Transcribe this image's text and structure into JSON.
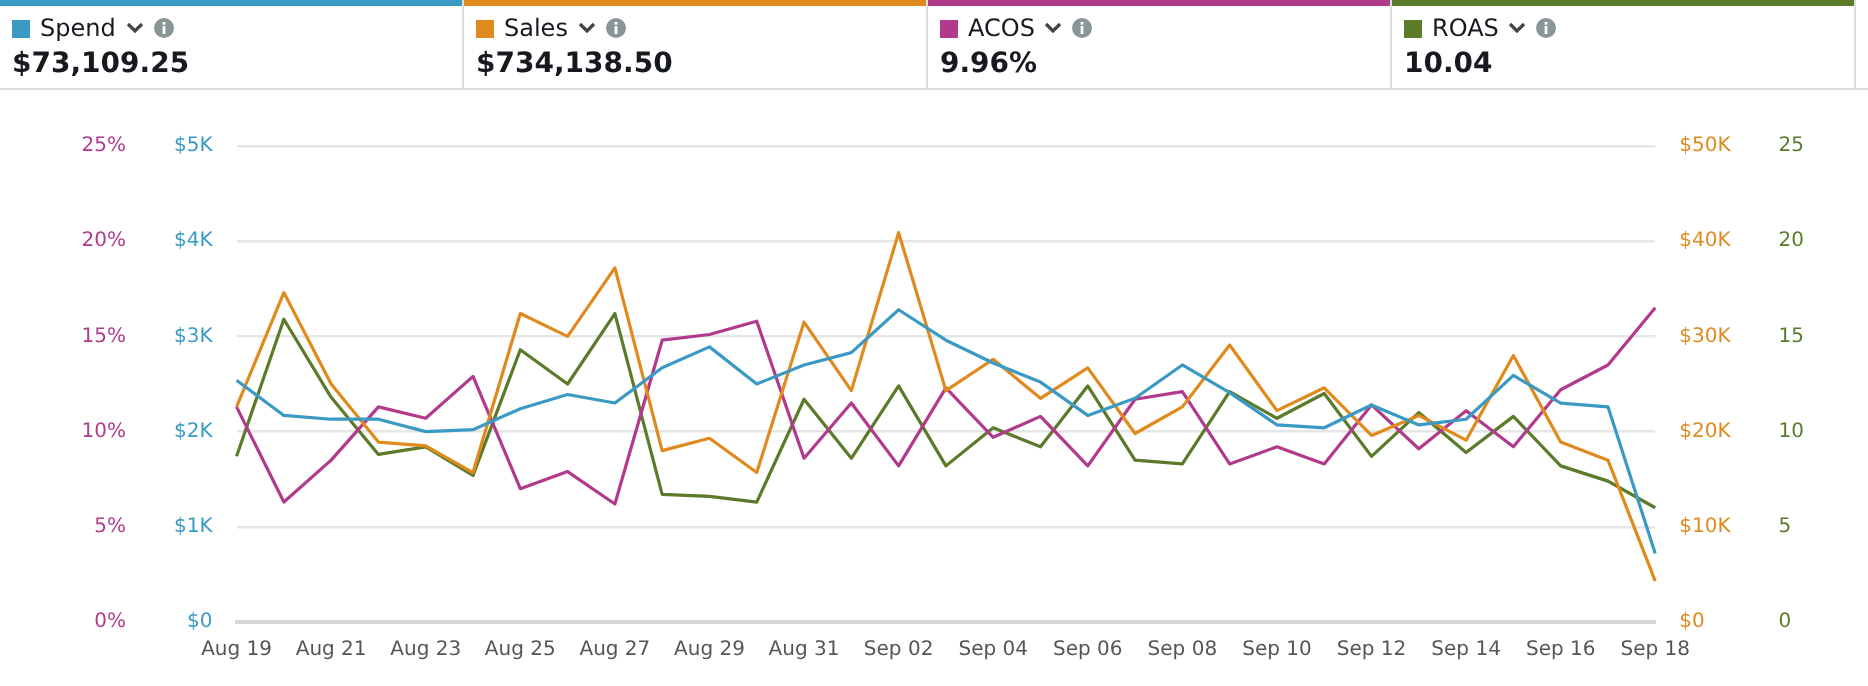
{
  "chart_data": {
    "type": "line",
    "categories": [
      "Aug 19",
      null,
      "Aug 21",
      null,
      "Aug 23",
      null,
      "Aug 25",
      null,
      "Aug 27",
      null,
      "Aug 29",
      null,
      "Aug 31",
      null,
      "Sep 02",
      null,
      "Sep 04",
      null,
      "Sep 06",
      null,
      "Sep 08",
      null,
      "Sep 10",
      null,
      "Sep 12",
      null,
      "Sep 14",
      null,
      "Sep 16",
      null,
      "Sep 18"
    ],
    "series": [
      {
        "name": "Spend",
        "color": "#3a9ac4",
        "values": [
          2540,
          2170,
          2130,
          2130,
          2000,
          2020,
          2240,
          2390,
          2300,
          2670,
          2890,
          2500,
          2700,
          2830,
          3280,
          2960,
          2720,
          2520,
          2170,
          2350,
          2700,
          2410,
          2070,
          2040,
          2280,
          2070,
          2130,
          2590,
          2300,
          2260,
          720
        ]
      },
      {
        "name": "Sales",
        "color": "#e08a1e",
        "axis": "y2",
        "values": [
          22600,
          34600,
          25000,
          18900,
          18500,
          15700,
          32400,
          30000,
          37200,
          18000,
          19300,
          15700,
          31500,
          24300,
          40900,
          24300,
          27600,
          23500,
          26700,
          19800,
          22600,
          29100,
          22200,
          24600,
          19600,
          21700,
          19100,
          28000,
          18900,
          17000,
          4300
        ]
      },
      {
        "name": "ACOS",
        "color": "#b23a8c",
        "axis": "y3",
        "values": [
          11.3,
          6.3,
          8.5,
          11.3,
          10.7,
          12.9,
          7.0,
          7.9,
          6.2,
          14.8,
          15.1,
          15.8,
          8.6,
          11.5,
          8.2,
          12.3,
          9.7,
          10.8,
          8.2,
          11.7,
          12.1,
          8.3,
          9.2,
          8.3,
          11.4,
          9.1,
          11.1,
          9.2,
          12.2,
          13.5,
          16.5
        ]
      },
      {
        "name": "ROAS",
        "color": "#5b7a2a",
        "axis": "y3",
        "values": [
          8.7,
          15.9,
          11.8,
          8.8,
          9.2,
          7.7,
          14.3,
          12.5,
          16.2,
          6.7,
          6.6,
          6.3,
          11.7,
          8.6,
          12.4,
          8.2,
          10.2,
          9.2,
          12.4,
          8.5,
          8.3,
          12.1,
          10.7,
          12.0,
          8.7,
          11.0,
          8.9,
          10.8,
          8.2,
          7.4,
          6.0
        ]
      }
    ],
    "ylim": [
      0,
      5000
    ],
    "yticks": [
      {
        "value": 0,
        "label": "$0"
      },
      {
        "value": 1000,
        "label": "$1K"
      },
      {
        "value": 2000,
        "label": "$2K"
      },
      {
        "value": 3000,
        "label": "$3K"
      },
      {
        "value": 4000,
        "label": "$4K"
      },
      {
        "value": 5000,
        "label": "$5K"
      }
    ],
    "y2lim": [
      0,
      50000
    ],
    "y2ticks": [
      {
        "value": 0,
        "label": "$0"
      },
      {
        "value": 10000,
        "label": "$10K"
      },
      {
        "value": 20000,
        "label": "$20K"
      },
      {
        "value": 30000,
        "label": "$30K"
      },
      {
        "value": 40000,
        "label": "$40K"
      },
      {
        "value": 50000,
        "label": "$50K"
      }
    ],
    "y3lim": [
      0,
      25
    ],
    "y3ticks": [
      0,
      5,
      10,
      15,
      20,
      25
    ],
    "annotations": [
      "$73,109.25",
      "$734,138.50",
      "9.96%",
      "10.04",
      "0%",
      "5%",
      "10%",
      "15%",
      "20%",
      "25%"
    ],
    "grid": "y",
    "legend": "top",
    "marker": "none",
    "line_style": "solid"
  }
}
